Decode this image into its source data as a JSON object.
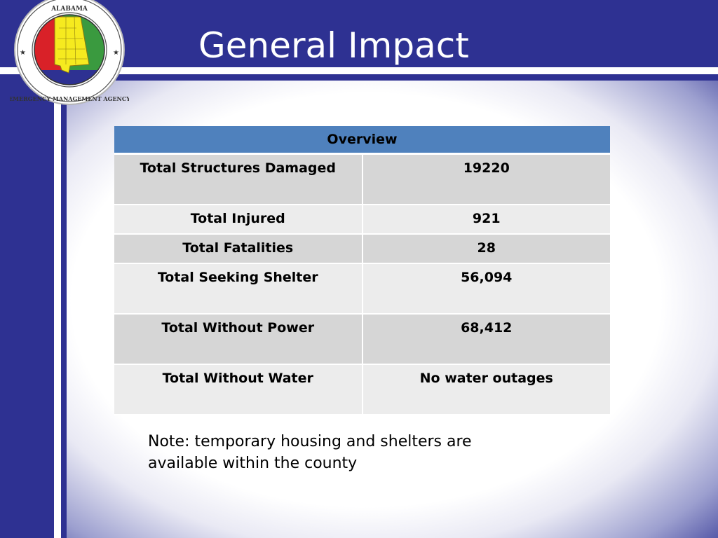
{
  "slide": {
    "title": "General Impact",
    "note": "Note: temporary housing and shelters are available within the county"
  },
  "logo": {
    "top_text": "ALABAMA",
    "ring_text": "EMERGENCY MANAGEMENT AGENCY",
    "colors": [
      "#d92128",
      "#3a9a3f",
      "#f6ea1f",
      "#2e3192"
    ]
  },
  "table": {
    "header": "Overview",
    "rows": [
      {
        "label": "Total Structures Damaged",
        "value": "19220"
      },
      {
        "label": "Total Injured",
        "value": "921"
      },
      {
        "label": "Total Fatalities",
        "value": "28"
      },
      {
        "label": "Total Seeking Shelter",
        "value": "56,094"
      },
      {
        "label": "Total Without Power",
        "value": "68,412"
      },
      {
        "label": "Total Without Water",
        "value": "No water outages"
      }
    ]
  },
  "colors": {
    "frame": "#2e3192",
    "header_bg": "#4f81bd",
    "row_dark": "#d6d6d6",
    "row_light": "#ececec"
  }
}
